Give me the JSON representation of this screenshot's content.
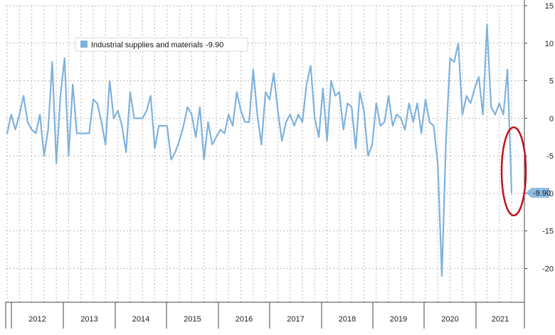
{
  "chart_data": {
    "type": "line",
    "legend": {
      "label": "Industrial supplies and materials",
      "value": "-9.90",
      "placement": "top-left"
    },
    "last_value_label": "-9.90",
    "colors": {
      "line": "#7fb2dd",
      "highlight_ellipse": "#c0121e",
      "grid": "#b8b8b8",
      "axis_tag": "#8fbde4"
    },
    "grid": true,
    "yaxis": {
      "position": "right",
      "ticks": [
        15,
        10,
        5,
        0,
        -5,
        -10,
        -15,
        -20
      ],
      "tick_labels": [
        "15",
        "10",
        "5",
        "0",
        "-5",
        "-10",
        "-15",
        "-20"
      ],
      "ylim": [
        -24.5,
        15
      ]
    },
    "xaxis": {
      "year_labels": [
        "2012",
        "2013",
        "2014",
        "2015",
        "2016",
        "2017",
        "2018",
        "2019",
        "2020",
        "2021"
      ]
    },
    "series": [
      {
        "values": [
          -2.0,
          0.5,
          -1.5,
          0.5,
          3.0,
          -0.5,
          -1.5,
          -2.0,
          0.5,
          -5.0,
          -1.5,
          7.5,
          -6.0,
          3.0,
          8.0,
          -5.0,
          4.5,
          -2.0,
          -2.0,
          -2.0,
          -2.0,
          2.5,
          2.0,
          -0.5,
          -3.5,
          5.0,
          0.0,
          1.0,
          -1.0,
          -4.5,
          3.5,
          0.0,
          0.0,
          0.0,
          1.0,
          3.0,
          -4.0,
          -1.0,
          -1.0,
          -1.0,
          -5.5,
          -4.5,
          -3.0,
          -1.0,
          1.5,
          0.5,
          -2.5,
          1.5,
          -5.5,
          -0.5,
          -3.5,
          -2.5,
          -1.5,
          -2.0,
          0.5,
          -1.0,
          3.5,
          1.0,
          -0.5,
          -0.5,
          6.5,
          0.5,
          -3.5,
          3.5,
          2.5,
          6.0,
          1.0,
          -3.0,
          -0.5,
          0.5,
          -1.0,
          0.5,
          -0.5,
          4.5,
          7.0,
          0.0,
          -2.5,
          4.0,
          -3.0,
          5.0,
          3.0,
          3.5,
          -1.5,
          2.0,
          1.5,
          -4.0,
          3.5,
          1.0,
          -5.0,
          -3.5,
          2.0,
          -1.0,
          -0.5,
          3.0,
          -1.0,
          0.5,
          0.0,
          -1.5,
          2.0,
          -0.5,
          2.0,
          -2.0,
          2.5,
          -0.5,
          -1.0,
          -6.0,
          -21.0,
          -3.0,
          8.0,
          7.5,
          10.0,
          0.5,
          3.0,
          2.0,
          4.0,
          5.5,
          0.5,
          12.5,
          1.5,
          0.5,
          2.0,
          0.5,
          6.5,
          -9.9
        ]
      }
    ]
  }
}
